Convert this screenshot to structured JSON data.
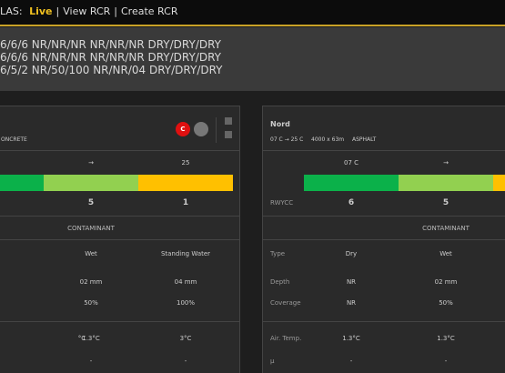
{
  "nav": {
    "brand": "LAS:",
    "items": [
      "Live",
      "|",
      "View RCR",
      "|",
      "Create RCR"
    ]
  },
  "summary": [
    "6/6/6 NR/NR/NR NR/NR/NR DRY/DRY/DRY",
    "6/6/6 NR/NR/NR NR/NR/NR DRY/DRY/DRY",
    "6/5/2 NR/50/100 NR/NR/04 DRY/DRY/DRY"
  ],
  "bar_colors": [
    "#0bb14a",
    "#92d050",
    "#ffc000"
  ],
  "panels": [
    {
      "subtitle": [
        "ONCRETE"
      ],
      "badge": "C",
      "header_row": [
        "→",
        "25"
      ],
      "rwycc": [
        "5",
        "1"
      ],
      "section": "CONTAMINANT",
      "rows": [
        {
          "values": [
            "Wet",
            "Standing Water"
          ]
        },
        {
          "values": [
            "02 mm",
            "04 mm"
          ]
        },
        {
          "values": [
            "50%",
            "100%"
          ]
        },
        {
          "values": [
            "°C",
            "1.3°C",
            "3°C"
          ]
        },
        {
          "values": [
            "-",
            "-"
          ]
        }
      ]
    },
    {
      "title": "Nord",
      "subtitle": [
        "07 C → 25 C",
        "4000 x 63m",
        "ASPHALT"
      ],
      "header_row": [
        "07 C",
        "→"
      ],
      "rwycc_label": "RWYCC",
      "rwycc": [
        "6",
        "5"
      ],
      "section": "CONTAMINANT",
      "rows": [
        {
          "label": "Type",
          "values": [
            "Dry",
            "Wet"
          ]
        },
        {
          "label": "Depth",
          "values": [
            "NR",
            "02 mm"
          ]
        },
        {
          "label": "Coverage",
          "values": [
            "NR",
            "50%"
          ]
        },
        {
          "label": "Air. Temp.",
          "values": [
            "1.3°C",
            "1.3°C"
          ]
        },
        {
          "label": "μ",
          "values": [
            "-",
            "-"
          ]
        }
      ]
    }
  ]
}
